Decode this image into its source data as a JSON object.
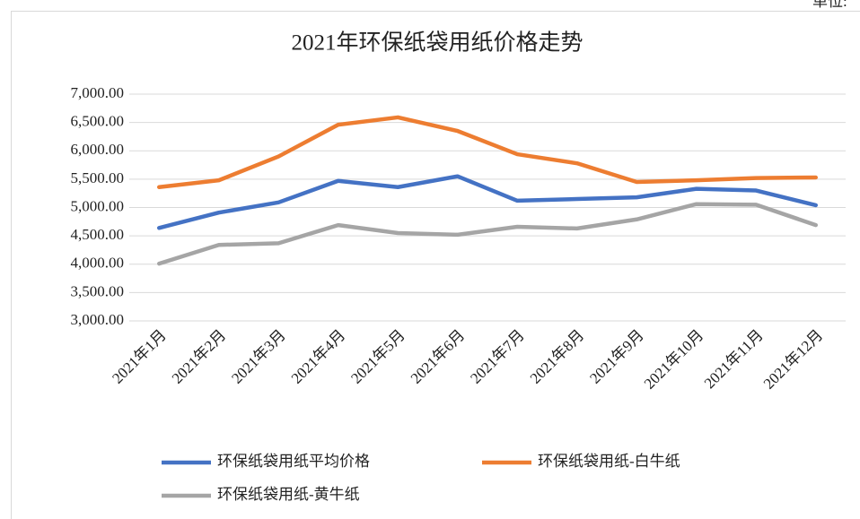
{
  "chart_data": {
    "type": "line",
    "title": "2021年环保纸袋用纸价格走势",
    "note": "单位:",
    "categories": [
      "2021年1月",
      "2021年2月",
      "2021年3月",
      "2021年4月",
      "2021年5月",
      "2021年6月",
      "2021年7月",
      "2021年8月",
      "2021年9月",
      "2021年10月",
      "2021年11月",
      "2021年12月"
    ],
    "series": [
      {
        "name": "环保纸袋用纸平均价格",
        "color": "#4472c4",
        "values": [
          4640,
          4910,
          5090,
          5470,
          5360,
          5550,
          5120,
          5150,
          5180,
          5330,
          5300,
          5040
        ]
      },
      {
        "name": "环保纸袋用纸-白牛纸",
        "color": "#ed7d31",
        "values": [
          5360,
          5480,
          5900,
          6460,
          6590,
          6350,
          5940,
          5780,
          5450,
          5480,
          5520,
          5530
        ]
      },
      {
        "name": "环保纸袋用纸-黄牛纸",
        "color": "#a5a5a5",
        "values": [
          4010,
          4340,
          4370,
          4690,
          4550,
          4520,
          4660,
          4630,
          4790,
          5060,
          5050,
          4690
        ]
      }
    ],
    "ylim": [
      3000,
      7000
    ],
    "yticks": [
      {
        "value": 3000,
        "label": "3,000.00"
      },
      {
        "value": 3500,
        "label": "3,500.00"
      },
      {
        "value": 4000,
        "label": "4,000.00"
      },
      {
        "value": 4500,
        "label": "4,500.00"
      },
      {
        "value": 5000,
        "label": "5,000.00"
      },
      {
        "value": 5500,
        "label": "5,500.00"
      },
      {
        "value": 6000,
        "label": "6,000.00"
      },
      {
        "value": 6500,
        "label": "6,500.00"
      },
      {
        "value": 7000,
        "label": "7,000.00"
      }
    ],
    "grid": true
  }
}
